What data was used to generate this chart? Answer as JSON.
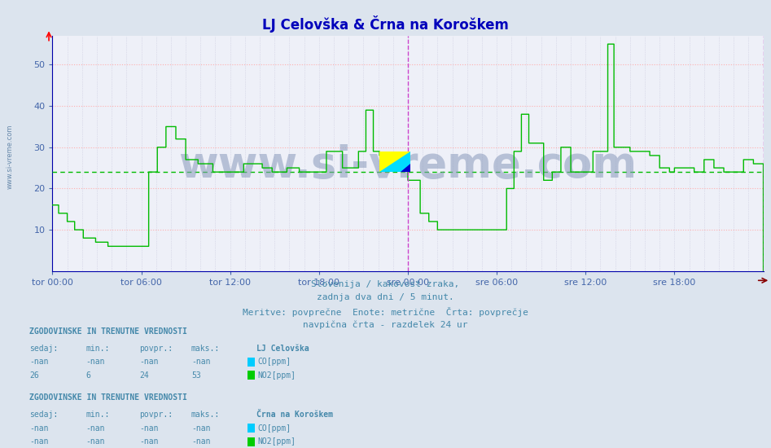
{
  "title": "LJ Celovška & Črna na Koroškem",
  "title_color": "#0000bb",
  "title_fontsize": 12,
  "bg_color": "#dce4ee",
  "plot_bg_color": "#eef0f8",
  "grid_h_color": "#ffb0b0",
  "grid_v_color": "#c8c8dc",
  "watermark": "www.si-vreme.com",
  "subtitle_lines": [
    "Slovenija / kakovost zraka,",
    "zadnja dva dni / 5 minut.",
    "Meritve: povprečne  Enote: metrične  Črta: povprečje",
    "navpična črta - razdelek 24 ur"
  ],
  "subtitle_color": "#4488aa",
  "subtitle_fontsize": 8,
  "x_ticks_labels": [
    "tor 00:00",
    "tor 06:00",
    "tor 12:00",
    "tor 18:00",
    "sre 00:00",
    "sre 06:00",
    "sre 12:00",
    "sre 18:00"
  ],
  "x_ticks_pos": [
    0,
    72,
    144,
    216,
    288,
    360,
    432,
    504
  ],
  "y_ticks": [
    10,
    20,
    30,
    40,
    50
  ],
  "ylim": [
    0,
    57
  ],
  "xlim": [
    0,
    576
  ],
  "no2_color": "#00bb00",
  "avg_line_color": "#00bb00",
  "avg_line_value": 24,
  "vline_color": "#cc44cc",
  "vline_positions": [
    288,
    576
  ],
  "table1_title": "LJ Celovška",
  "table2_title": "Črna na Koroškem",
  "legend_co_color": "#00ccff",
  "legend_no2_color": "#00cc00",
  "watermark_color": "#8899bb",
  "watermark_fontsize": 38,
  "axis_color": "#0000aa",
  "tick_color": "#4466aa",
  "tick_fontsize": 8,
  "sidebar_text": "www.si-vreme.com",
  "sidebar_color": "#6688aa"
}
